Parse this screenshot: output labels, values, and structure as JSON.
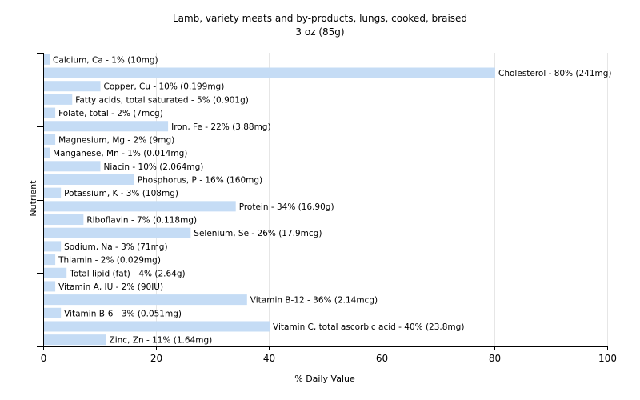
{
  "chart_data": {
    "type": "bar",
    "orientation": "horizontal",
    "title": "Lamb, variety meats and by-products, lungs, cooked, braised",
    "subtitle": "3 oz (85g)",
    "xlabel": "% Daily Value",
    "ylabel": "Nutrient",
    "xlim": [
      0,
      100
    ],
    "xticks": [
      "0",
      "20",
      "40",
      "60",
      "80",
      "100"
    ],
    "grid": true,
    "bar_color": "#c5dcf5",
    "categories": [
      "Calcium, Ca",
      "Cholesterol",
      "Copper, Cu",
      "Fatty acids, total saturated",
      "Folate, total",
      "Iron, Fe",
      "Magnesium, Mg",
      "Manganese, Mn",
      "Niacin",
      "Phosphorus, P",
      "Potassium, K",
      "Protein",
      "Riboflavin",
      "Selenium, Se",
      "Sodium, Na",
      "Thiamin",
      "Total lipid (fat)",
      "Vitamin A, IU",
      "Vitamin B-12",
      "Vitamin B-6",
      "Vitamin C, total ascorbic acid",
      "Zinc, Zn"
    ],
    "values": [
      1,
      80,
      10,
      5,
      2,
      22,
      2,
      1,
      10,
      16,
      3,
      34,
      7,
      26,
      3,
      2,
      4,
      2,
      36,
      3,
      40,
      11
    ],
    "labels": [
      "Calcium, Ca - 1% (10mg)",
      "Cholesterol - 80% (241mg)",
      "Copper, Cu - 10% (0.199mg)",
      "Fatty acids, total saturated - 5% (0.901g)",
      "Folate, total - 2% (7mcg)",
      "Iron, Fe - 22% (3.88mg)",
      "Magnesium, Mg - 2% (9mg)",
      "Manganese, Mn - 1% (0.014mg)",
      "Niacin - 10% (2.064mg)",
      "Phosphorus, P - 16% (160mg)",
      "Potassium, K - 3% (108mg)",
      "Protein - 34% (16.90g)",
      "Riboflavin - 7% (0.118mg)",
      "Selenium, Se - 26% (17.9mcg)",
      "Sodium, Na - 3% (71mg)",
      "Thiamin - 2% (0.029mg)",
      "Total lipid (fat) - 4% (2.64g)",
      "Vitamin A, IU - 2% (90IU)",
      "Vitamin B-12 - 36% (2.14mcg)",
      "Vitamin B-6 - 3% (0.051mg)",
      "Vitamin C, total ascorbic acid - 40% (23.8mg)",
      "Zinc, Zn - 11% (1.64mg)"
    ]
  }
}
